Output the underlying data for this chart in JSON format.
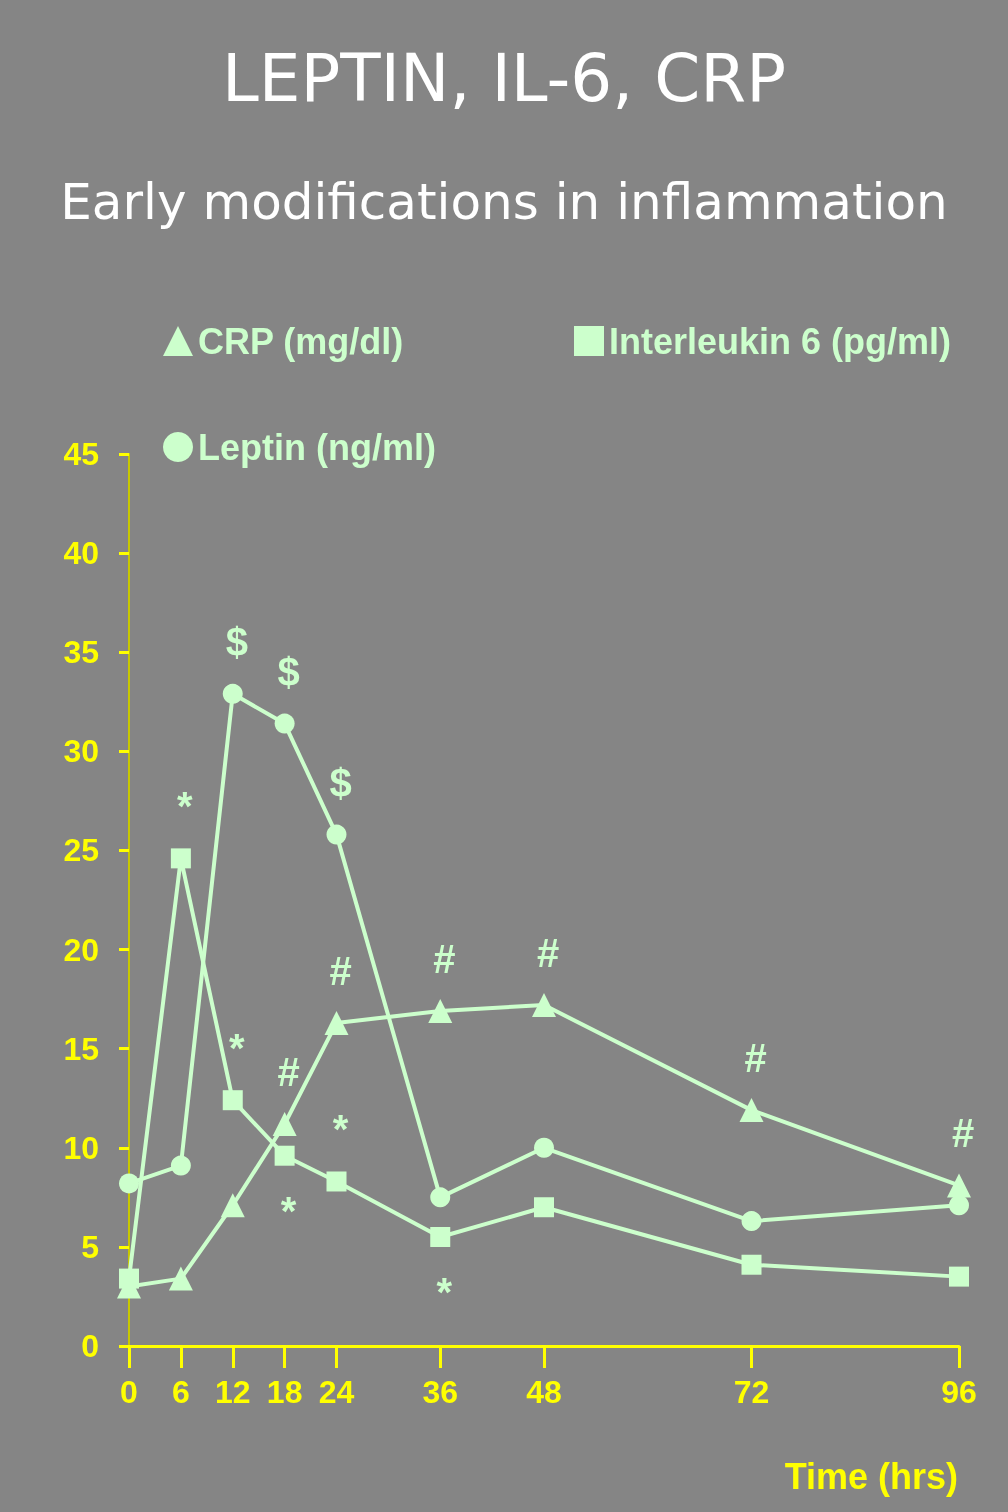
{
  "chart_data": {
    "type": "line",
    "title": "LEPTIN, IL-6, CRP",
    "subtitle": "Early modifications in inflammation",
    "xlabel": "Time (hrs)",
    "x": [
      0,
      6,
      12,
      18,
      24,
      36,
      48,
      72,
      96
    ],
    "series": [
      {
        "name": "CRP (mg/dl)",
        "color": "#ccffcc",
        "marker": "triangle",
        "values": [
          3.0,
          3.4,
          7.1,
          11.2,
          16.3,
          16.9,
          17.2,
          11.9,
          8.1
        ]
      },
      {
        "name": "Interleukin 6 (pg/ml)",
        "color": "#ccffcc",
        "marker": "square",
        "values": [
          3.4,
          24.6,
          12.4,
          9.6,
          8.3,
          5.5,
          7.0,
          4.1,
          3.5
        ]
      },
      {
        "name": "Leptin (ng/ml)",
        "color": "#ccffcc",
        "marker": "circle",
        "values": [
          8.2,
          9.1,
          32.9,
          31.4,
          25.8,
          7.5,
          10.0,
          6.3,
          7.1
        ]
      }
    ],
    "xlim": [
      0,
      96
    ],
    "xticks": [
      0,
      6,
      12,
      18,
      24,
      36,
      48,
      72,
      96
    ],
    "ylim": [
      0,
      45
    ],
    "yticks": [
      0,
      5,
      10,
      15,
      20,
      25,
      30,
      35,
      40,
      45
    ],
    "grid": false,
    "legend": "top",
    "line_style": "solid",
    "annotations": [
      {
        "text": "*",
        "x": 6,
        "y": 24.6
      },
      {
        "text": "*",
        "x": 12,
        "y": 12.4
      },
      {
        "text": "*",
        "x": 18,
        "y": 9.6
      },
      {
        "text": "*",
        "x": 24,
        "y": 8.3
      },
      {
        "text": "*",
        "x": 36,
        "y": 5.5
      },
      {
        "text": "$",
        "x": 12,
        "y": 32.9
      },
      {
        "text": "$",
        "x": 18,
        "y": 31.4
      },
      {
        "text": "$",
        "x": 24,
        "y": 25.8
      },
      {
        "text": "#",
        "x": 18,
        "y": 11.2
      },
      {
        "text": "#",
        "x": 24,
        "y": 16.3
      },
      {
        "text": "#",
        "x": 36,
        "y": 16.9
      },
      {
        "text": "#",
        "x": 48,
        "y": 17.2
      },
      {
        "text": "#",
        "x": 72,
        "y": 11.9
      },
      {
        "text": "#",
        "x": 96,
        "y": 8.1
      }
    ]
  }
}
